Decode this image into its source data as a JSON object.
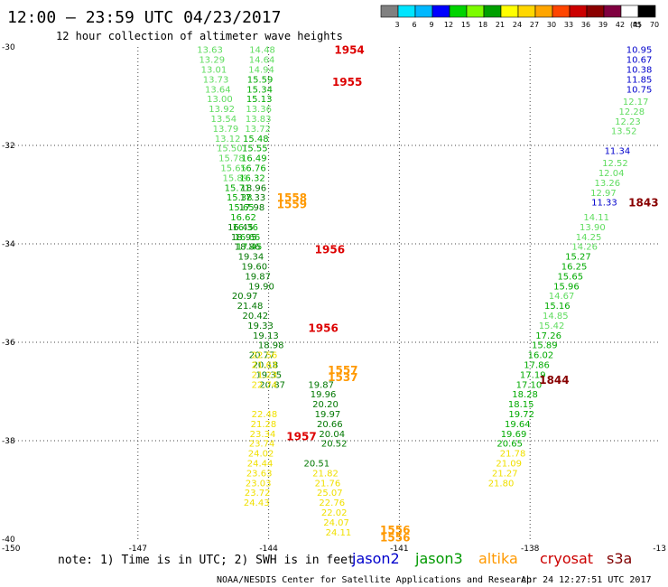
{
  "title": "12:00 — 23:59 UTC 04/23/2017",
  "subtitle": "12 hour collection of altimeter wave heights",
  "footer": "NOAA/NESDIS Center for Satellite Applications and Research",
  "timestamp": "Apr 24 12:27:51 UTC 2017",
  "note": "note: 1) Time is in UTC; 2) SWH is in feet",
  "legend": {
    "unit": "(ft)",
    "ticks": [
      "3",
      "6",
      "9",
      "12",
      "15",
      "18",
      "21",
      "24",
      "27",
      "30",
      "33",
      "36",
      "39",
      "42",
      "45",
      "70"
    ],
    "colors": [
      "#808080",
      "#00e5ff",
      "#00b8ff",
      "#0000ff",
      "#00d400",
      "#7cfc00",
      "#00a000",
      "#ffff00",
      "#ffd700",
      "#ffa500",
      "#ff4500",
      "#cc0000",
      "#8b0000",
      "#800040",
      "#ffffff",
      "#000000"
    ]
  },
  "satellites": [
    {
      "name": "jason2",
      "color": "#0000cc"
    },
    {
      "name": "jason3",
      "color": "#009900"
    },
    {
      "name": "altika",
      "color": "#ff9900"
    },
    {
      "name": "cryosat",
      "color": "#cc0000"
    },
    {
      "name": "s3a",
      "color": "#800000"
    }
  ],
  "chart_data": {
    "type": "scatter",
    "title": "12:00 — 23:59 UTC 04/23/2017",
    "subtitle": "12 hour collection of altimeter wave heights",
    "xlim": [
      -150,
      -135
    ],
    "ylim": [
      -40,
      -30
    ],
    "x_ticks": [
      "-150",
      "-147",
      "-144",
      "-141",
      "-138",
      "-13"
    ],
    "y_ticks": [
      "-30",
      "-32",
      "-34",
      "-36",
      "-38",
      "-40"
    ],
    "grid": true,
    "colors": {
      "lightgreen": "#5fdc5f",
      "green": "#00aa00",
      "darkgreen": "#007700",
      "yellow": "#f0e000",
      "orange": "#ff9900",
      "red": "#dd0000",
      "darkred": "#880000",
      "blue": "#0000cc"
    },
    "tracks": [
      {
        "name": "track-east-a",
        "color": "blue",
        "x0": -135.2,
        "y0": -30.05,
        "dx": 0,
        "dy": 0.2,
        "values": [
          "10.95",
          "10.67",
          "10.38",
          "11.85",
          "10.75"
        ]
      },
      {
        "name": "track-east-b",
        "color": "lightgreen",
        "x0": -135.28,
        "y0": -31.1,
        "dx": -0.09,
        "dy": 0.2,
        "values": [
          "12.17",
          "12.28",
          "12.23",
          "13.52"
        ]
      },
      {
        "name": "track-east-c",
        "color": "blue",
        "x0": -135.7,
        "y0": -32.1,
        "dx": 0,
        "dy": 0.2,
        "values": [
          "11.34"
        ]
      },
      {
        "name": "track-east-d",
        "color": "lightgreen",
        "x0": -135.75,
        "y0": -32.35,
        "dx": -0.09,
        "dy": 0.2,
        "values": [
          "12.52",
          "12.04",
          "13.26",
          "12.97"
        ]
      },
      {
        "name": "track-east-e",
        "color": "blue",
        "x0": -136.0,
        "y0": -33.15,
        "dx": 0,
        "dy": 0.2,
        "values": [
          "11.33"
        ]
      },
      {
        "name": "track-east-f",
        "color": "lightgreen",
        "x0": -136.18,
        "y0": -33.45,
        "dx": -0.09,
        "dy": 0.2,
        "values": [
          "14.11",
          "13.90",
          "14.25",
          "14.26"
        ]
      },
      {
        "name": "track-east-g",
        "color": "green",
        "x0": -136.6,
        "y0": -34.25,
        "dx": -0.09,
        "dy": 0.2,
        "values": [
          "15.27",
          "16.25",
          "15.65",
          "15.96"
        ]
      },
      {
        "name": "track-east-h",
        "color": "lightgreen",
        "x0": -136.98,
        "y0": -35.05,
        "dx": -0.09,
        "dy": 0.2,
        "values": [
          "14.67"
        ]
      },
      {
        "name": "track-east-i",
        "color": "green",
        "x0": -137.08,
        "y0": -35.25,
        "dx": -0.09,
        "dy": 0.2,
        "values": [
          "15.16"
        ]
      },
      {
        "name": "track-east-j",
        "color": "lightgreen",
        "x0": -137.12,
        "y0": -35.45,
        "dx": -0.09,
        "dy": 0.2,
        "values": [
          "14.85",
          "15.42"
        ]
      },
      {
        "name": "track-east-k",
        "color": "green",
        "x0": -137.28,
        "y0": -35.85,
        "dx": -0.09,
        "dy": 0.2,
        "values": [
          "17.26",
          "15.89",
          "16.02",
          "17.86",
          "17.19",
          "17.10",
          "18.28",
          "18.15"
        ]
      },
      {
        "name": "track-east-l",
        "color": "green",
        "x0": -137.9,
        "y0": -37.45,
        "dx": -0.09,
        "dy": 0.2,
        "values": [
          "19.72",
          "19.64",
          "19.69",
          "20.65"
        ]
      },
      {
        "name": "track-east-m",
        "color": "yellow",
        "x0": -138.1,
        "y0": -38.25,
        "dx": -0.09,
        "dy": 0.2,
        "values": [
          "21.78",
          "21.09",
          "21.27",
          "21.80"
        ]
      },
      {
        "name": "track-mid-a",
        "color": "lightgreen",
        "x0": -143.85,
        "y0": -30.05,
        "dx": -0.01,
        "dy": 0.2,
        "values": [
          "14.48",
          "14.64",
          "14.94"
        ]
      },
      {
        "name": "track-mid-b",
        "color": "green",
        "x0": -143.9,
        "y0": -30.65,
        "dx": -0.01,
        "dy": 0.2,
        "values": [
          "15.59",
          "15.34",
          "15.13"
        ]
      },
      {
        "name": "track-mid-c",
        "color": "lightgreen",
        "x0": -143.93,
        "y0": -31.25,
        "dx": -0.01,
        "dy": 0.2,
        "values": [
          "13.36",
          "13.83",
          "13.72"
        ]
      },
      {
        "name": "track-mid-d",
        "color": "green",
        "x0": -144.0,
        "y0": -31.85,
        "dx": -0.02,
        "dy": 0.2,
        "values": [
          "15.48",
          "15.55",
          "16.49",
          "16.76",
          "16.32"
        ]
      },
      {
        "name": "track-mid-e",
        "color": "darkgreen",
        "x0": -144.05,
        "y0": -32.85,
        "dx": -0.02,
        "dy": 0.2,
        "values": [
          "18.96",
          "17.33",
          "17.98"
        ]
      },
      {
        "name": "track-mid-f",
        "color": "darkgreen",
        "x0": -144.35,
        "y0": -33.65,
        "dx": 0.08,
        "dy": 0.2,
        "values": [
          "16.45",
          "18.95",
          "18.86",
          "19.34",
          "19.60",
          "19.87",
          "19.90"
        ]
      },
      {
        "name": "track-mid-g",
        "color": "darkgreen",
        "x0": -144.25,
        "y0": -35.05,
        "dx": 0.12,
        "dy": 0.2,
        "values": [
          "20.97",
          "21.48",
          "20.42",
          "19.33",
          "19.13",
          "18.98"
        ]
      },
      {
        "name": "track-mid-h",
        "color": "darkgreen",
        "x0": -143.86,
        "y0": -36.25,
        "dx": 0.08,
        "dy": 0.2,
        "values": [
          "20.77",
          "20.18",
          "19.35",
          "20.87"
        ]
      },
      {
        "name": "track-mid-i",
        "color": "yellow",
        "x0": -143.8,
        "y0": -36.25,
        "dx": 0,
        "dy": 0.2,
        "values": [
          "22.56",
          "21.63",
          "21.23",
          "22.74"
        ]
      },
      {
        "name": "track-mid-j",
        "color": "yellow",
        "x0": -143.8,
        "y0": -37.45,
        "dx": -0.02,
        "dy": 0.2,
        "values": [
          "22.48",
          "21.28",
          "23.34",
          "23.74",
          "24.02",
          "24.44",
          "23.63",
          "23.03",
          "23.72",
          "24.43"
        ]
      },
      {
        "name": "track-mid-k",
        "color": "darkgreen",
        "x0": -142.5,
        "y0": -36.85,
        "dx": 0.05,
        "dy": 0.2,
        "values": [
          "19.87",
          "19.96",
          "20.20",
          "19.97",
          "20.66",
          "20.04",
          "20.52"
        ]
      },
      {
        "name": "track-mid-l",
        "color": "darkgreen",
        "x0": -142.6,
        "y0": -38.45,
        "dx": 0.01,
        "dy": 0.2,
        "values": [
          "20.51"
        ]
      },
      {
        "name": "track-mid-m",
        "color": "yellow",
        "x0": -142.4,
        "y0": -38.65,
        "dx": 0.05,
        "dy": 0.2,
        "values": [
          "21.82",
          "21.76",
          "25.07",
          "22.76",
          "22.02",
          "24.07",
          "24.11"
        ]
      },
      {
        "name": "track-west-a",
        "color": "lightgreen",
        "x0": -145.05,
        "y0": -30.05,
        "dx": 0.045,
        "dy": 0.2,
        "values": [
          "13.63",
          "13.29",
          "13.01",
          "13.73",
          "13.64",
          "13.00",
          "13.92",
          "13.54",
          "13.79",
          "13.12"
        ]
      },
      {
        "name": "track-west-b",
        "color": "lightgreen",
        "x0": -144.6,
        "y0": -32.05,
        "dx": 0.045,
        "dy": 0.2,
        "values": [
          "15.50",
          "15.78",
          "15.65",
          "15.89"
        ]
      },
      {
        "name": "track-west-c",
        "color": "green",
        "x0": -144.42,
        "y0": -32.85,
        "dx": 0.045,
        "dy": 0.2,
        "values": [
          "15.71",
          "15.38",
          "15.65",
          "16.62",
          "16.36",
          "16.66",
          "17.45"
        ]
      }
    ],
    "pass_labels": [
      {
        "text": "1954",
        "color": "red",
        "x": -141.8,
        "y": -30.05
      },
      {
        "text": "1955",
        "color": "red",
        "x": -141.85,
        "y": -30.7
      },
      {
        "text": "1558",
        "color": "orange",
        "x": -143.12,
        "y": -33.05
      },
      {
        "text": "1559",
        "color": "orange",
        "x": -143.12,
        "y": -33.18
      },
      {
        "text": "1843",
        "color": "darkred",
        "x": -135.05,
        "y": -33.15
      },
      {
        "text": "1956",
        "color": "red",
        "x": -142.25,
        "y": -34.1
      },
      {
        "text": "1956",
        "color": "red",
        "x": -142.4,
        "y": -35.7
      },
      {
        "text": "1557",
        "color": "orange",
        "x": -141.95,
        "y": -36.55
      },
      {
        "text": "1537",
        "color": "orange",
        "x": -141.95,
        "y": -36.7
      },
      {
        "text": "1844",
        "color": "darkred",
        "x": -137.1,
        "y": -36.75
      },
      {
        "text": "1957",
        "color": "red",
        "x": -142.9,
        "y": -37.9
      },
      {
        "text": "1556",
        "color": "orange",
        "x": -140.75,
        "y": -39.8
      },
      {
        "text": "1556",
        "color": "orange",
        "x": -140.75,
        "y": -39.95
      }
    ]
  }
}
